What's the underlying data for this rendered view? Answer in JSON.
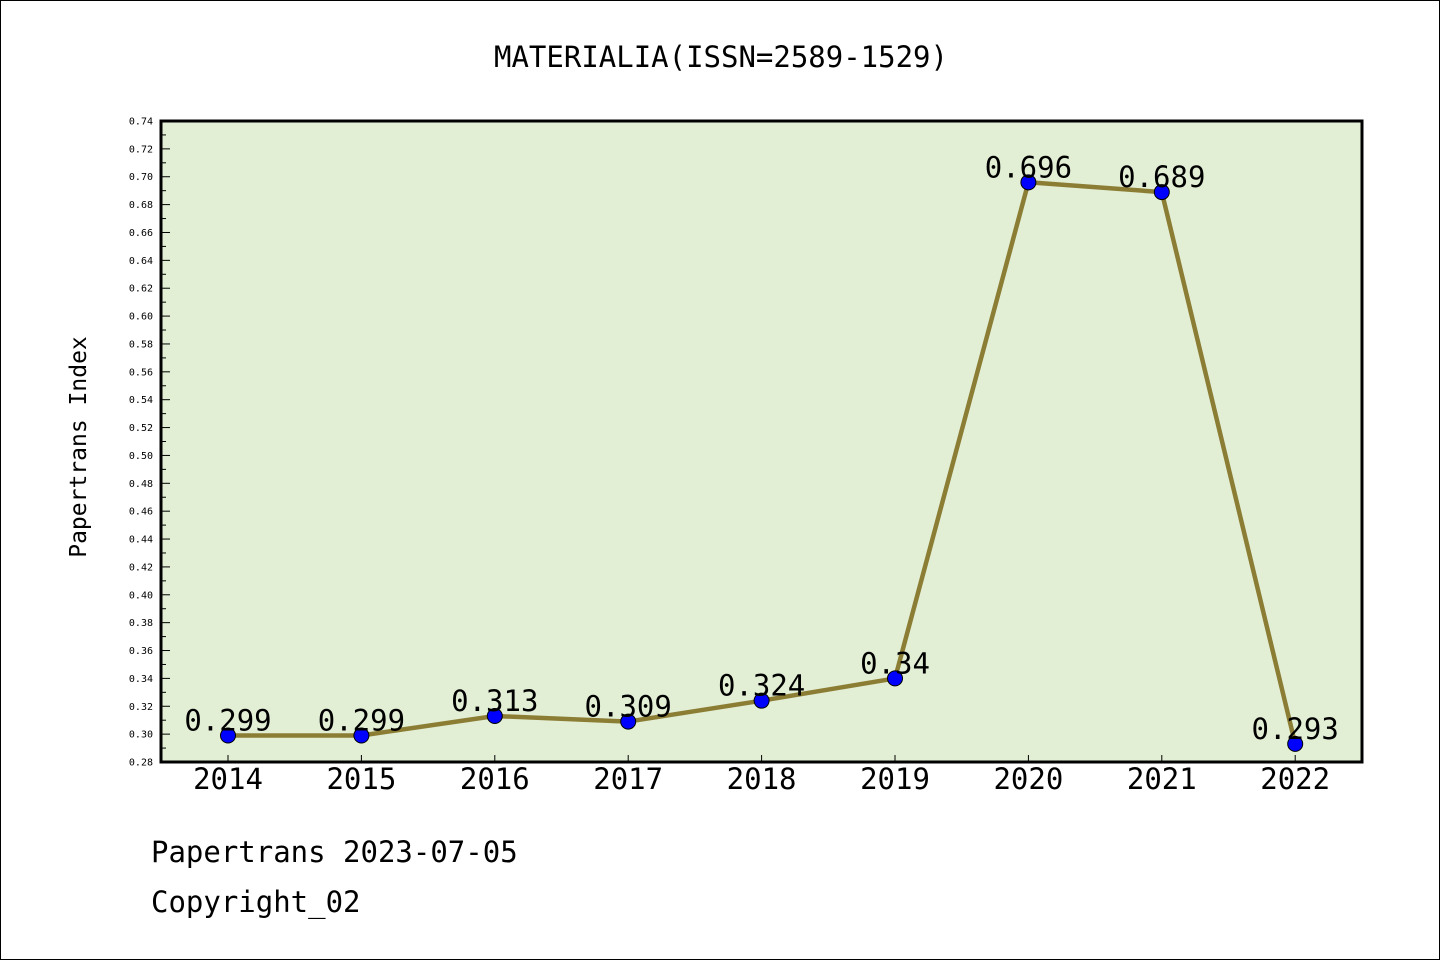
{
  "chart_data": {
    "type": "line",
    "title": "MATERIALIA(ISSN=2589-1529)",
    "ylabel": "Papertrans Index",
    "xlabel": "",
    "categories": [
      "2014",
      "2015",
      "2016",
      "2017",
      "2018",
      "2019",
      "2020",
      "2021",
      "2022"
    ],
    "series": [
      {
        "values": [
          0.299,
          0.299,
          0.313,
          0.309,
          0.324,
          0.34,
          0.696,
          0.689,
          0.293
        ],
        "labels": [
          "0.299",
          "0.299",
          "0.313",
          "0.309",
          "0.324",
          "0.34",
          "0.696",
          "0.689",
          "0.293"
        ]
      }
    ],
    "ylim": [
      0.28,
      0.74
    ],
    "ytick_labels": [
      "0.28",
      "0.30",
      "0.32",
      "0.34",
      "0.36",
      "0.38",
      "0.40",
      "0.42",
      "0.44",
      "0.46",
      "0.48",
      "0.50",
      "0.52",
      "0.54",
      "0.56",
      "0.58",
      "0.60",
      "0.62",
      "0.64",
      "0.66",
      "0.68",
      "0.70",
      "0.72",
      "0.74"
    ],
    "grid": false,
    "legend": "none",
    "colors": {
      "plot_background": "#e2efd5",
      "line": "#8c7d35",
      "marker": "#0000ff"
    }
  },
  "footer": {
    "line1": "Papertrans 2023-07-05",
    "line2": "Copyright_02"
  }
}
